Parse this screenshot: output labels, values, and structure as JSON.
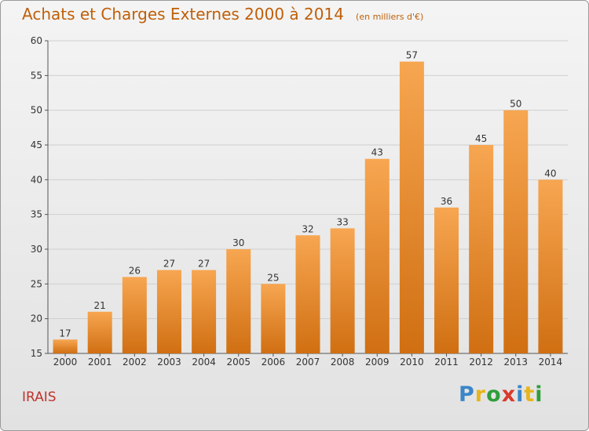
{
  "title": "Achats et Charges Externes 2000 à 2014",
  "subtitle": "(en milliers d'€)",
  "location": "IRAIS",
  "brand": {
    "text": "Proxiti",
    "letters": [
      "P",
      "r",
      "o",
      "x",
      "i",
      "t",
      "i"
    ],
    "colors": [
      "#3a86c8",
      "#e8b51a",
      "#2f9e3a",
      "#d93a2b",
      "#3a86c8",
      "#e8b51a",
      "#2f9e3a"
    ]
  },
  "colors": {
    "bar_light": "#f7a651",
    "bar_dark": "#d06f12",
    "title": "#bf5f08",
    "location": "#c0332d"
  },
  "chart_data": {
    "type": "bar",
    "categories": [
      "2000",
      "2001",
      "2002",
      "2003",
      "2004",
      "2005",
      "2006",
      "2007",
      "2008",
      "2009",
      "2010",
      "2011",
      "2012",
      "2013",
      "2014"
    ],
    "values": [
      17,
      21,
      26,
      27,
      27,
      30,
      25,
      32,
      33,
      43,
      57,
      36,
      45,
      50,
      40
    ],
    "ylim": [
      15,
      60
    ],
    "yticks": [
      15,
      20,
      25,
      30,
      35,
      40,
      45,
      50,
      55,
      60
    ],
    "grid": "horizontal"
  }
}
